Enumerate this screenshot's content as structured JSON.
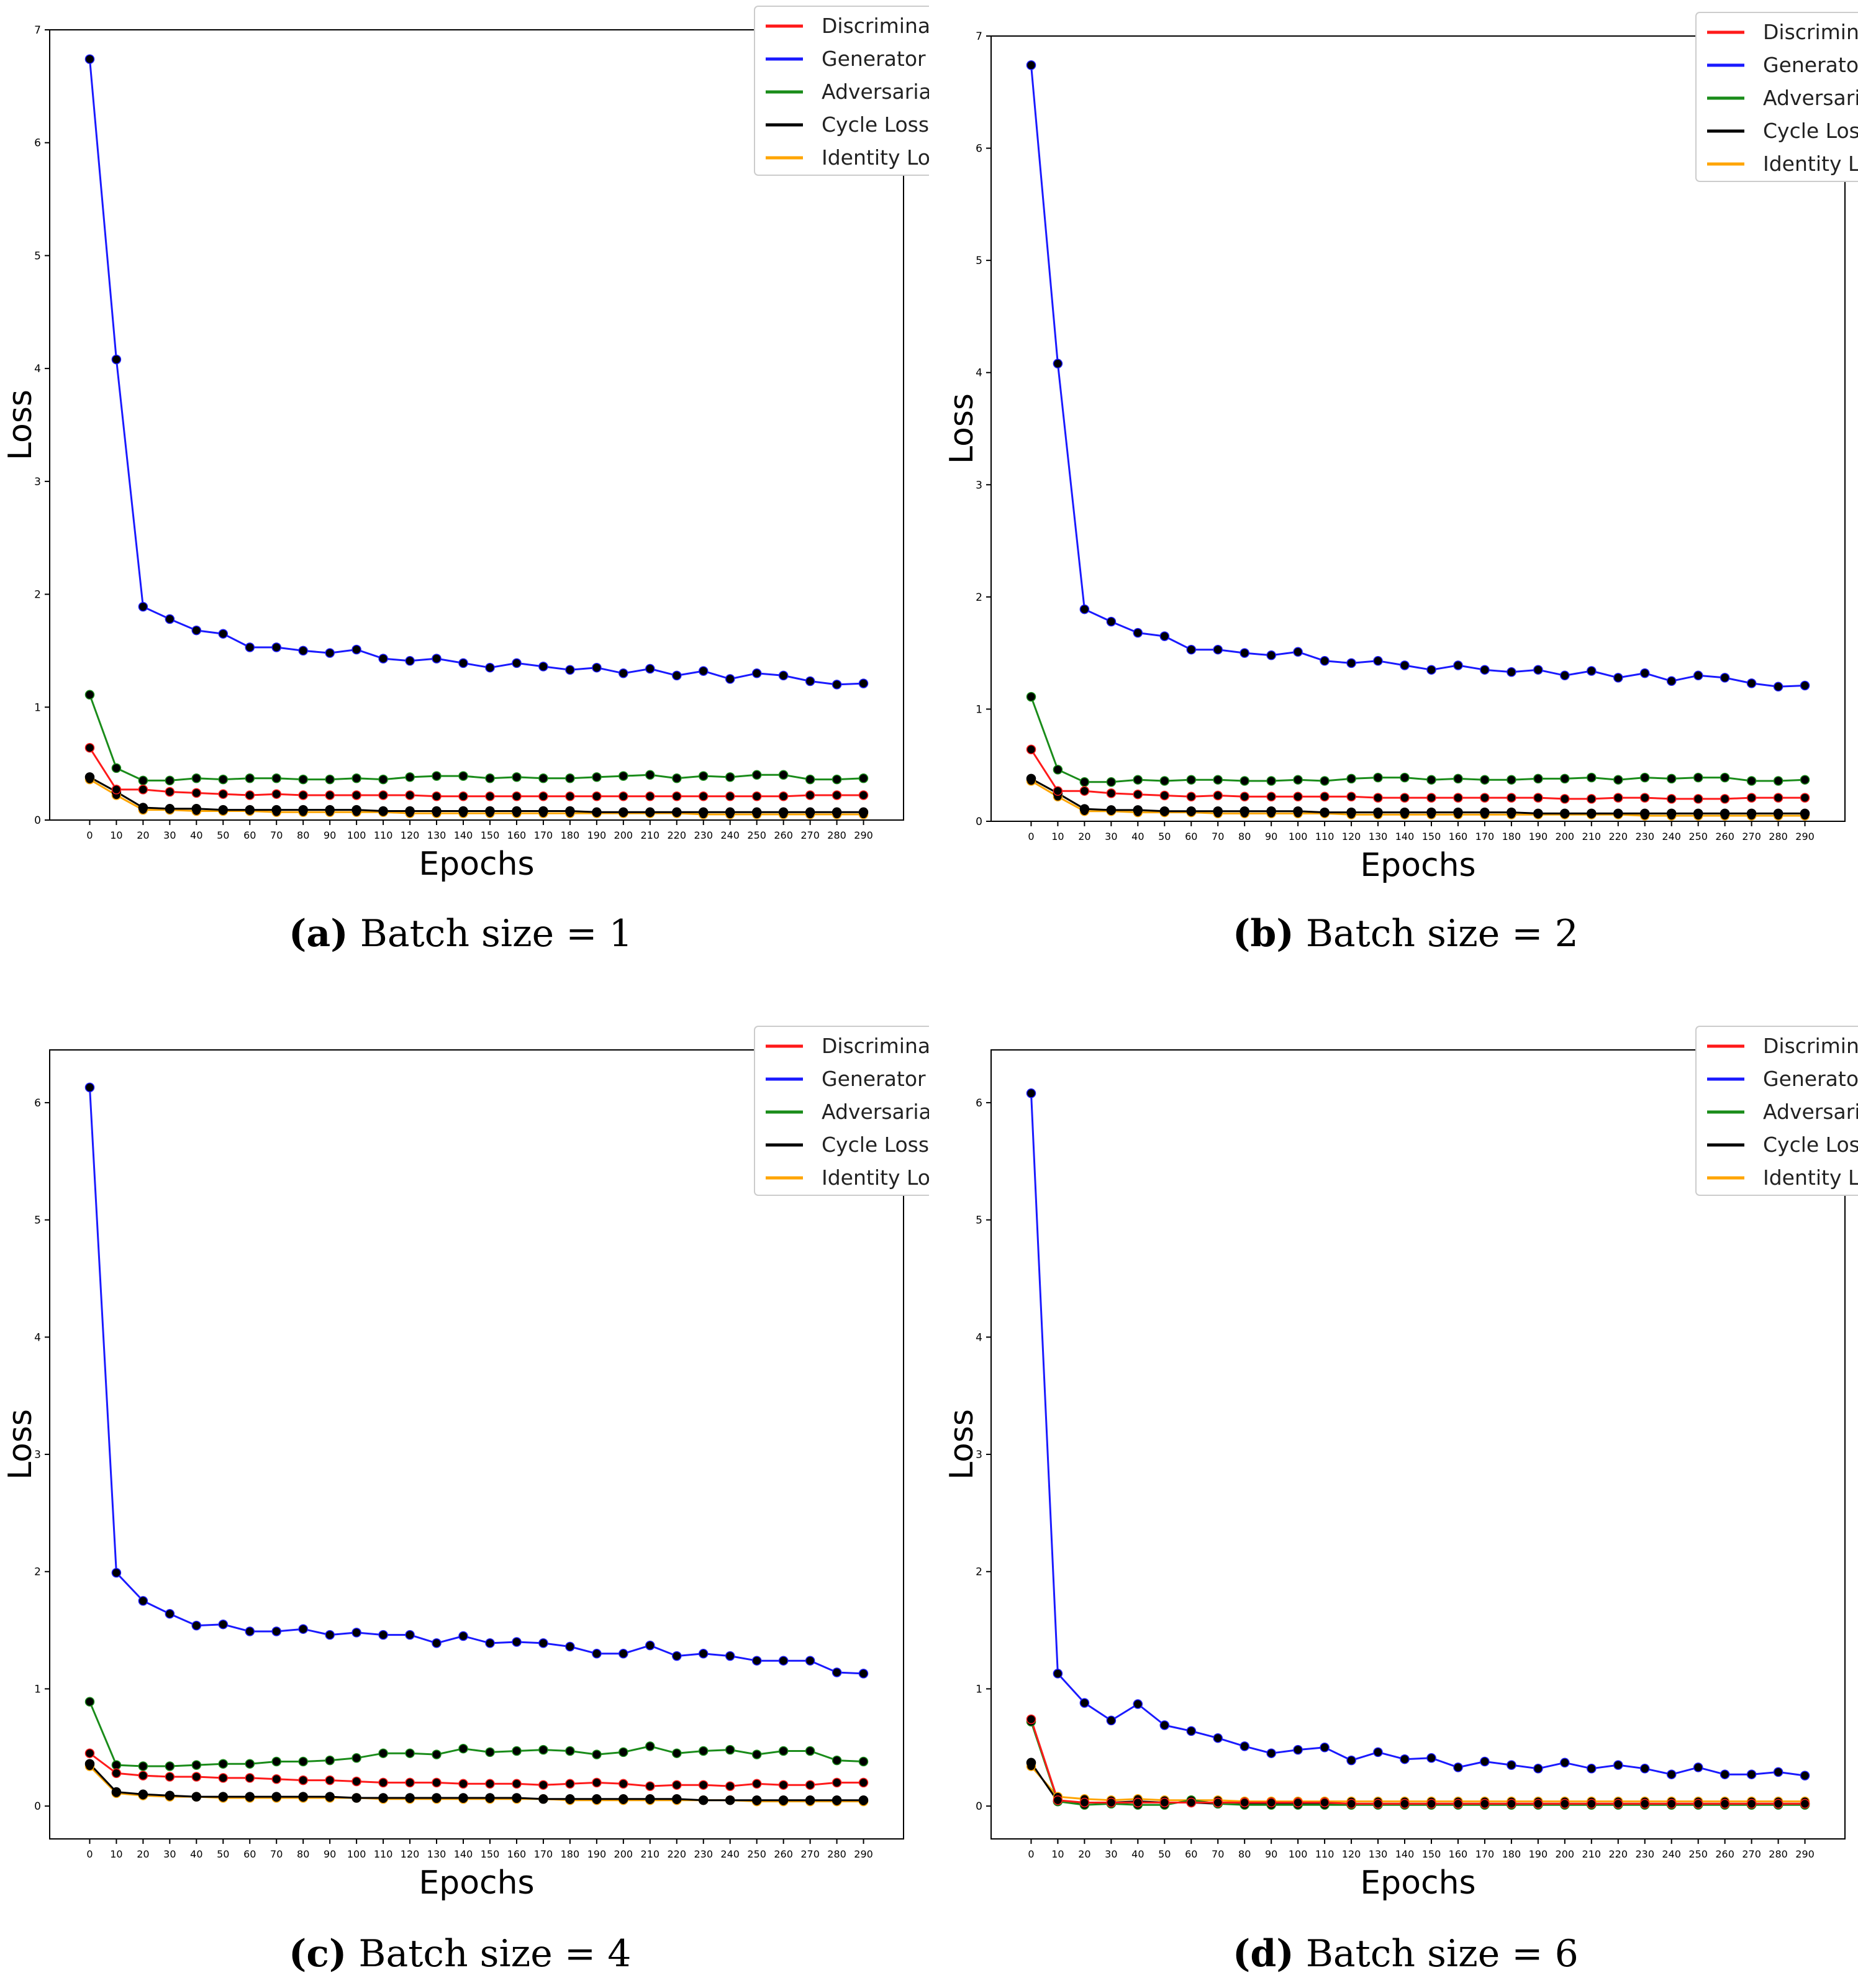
{
  "chart_data": [
    {
      "type": "line",
      "id": "a",
      "xlabel": "Epochs",
      "ylabel": "Loss",
      "ylim": [
        0,
        7
      ],
      "yticks": [
        0,
        1,
        2,
        3,
        4,
        5,
        6,
        7
      ],
      "x": [
        0,
        10,
        20,
        30,
        40,
        50,
        60,
        70,
        80,
        90,
        100,
        110,
        120,
        130,
        140,
        150,
        160,
        170,
        180,
        190,
        200,
        210,
        220,
        230,
        240,
        250,
        260,
        270,
        280,
        290
      ],
      "series": [
        {
          "name": "Discriminator",
          "color": "#ff1a1a",
          "values": [
            0.64,
            0.27,
            0.27,
            0.25,
            0.24,
            0.23,
            0.22,
            0.23,
            0.22,
            0.22,
            0.22,
            0.22,
            0.22,
            0.21,
            0.21,
            0.21,
            0.21,
            0.21,
            0.21,
            0.21,
            0.21,
            0.21,
            0.21,
            0.21,
            0.21,
            0.21,
            0.21,
            0.22,
            0.22,
            0.22
          ]
        },
        {
          "name": "Generator",
          "color": "#1a1aff",
          "values": [
            6.74,
            4.08,
            1.89,
            1.78,
            1.68,
            1.65,
            1.53,
            1.53,
            1.5,
            1.48,
            1.51,
            1.43,
            1.41,
            1.43,
            1.39,
            1.35,
            1.39,
            1.36,
            1.33,
            1.35,
            1.3,
            1.34,
            1.28,
            1.32,
            1.25,
            1.3,
            1.28,
            1.23,
            1.2,
            1.21
          ]
        },
        {
          "name": "Adversarial Loss",
          "color": "#1a8c1a",
          "values": [
            1.11,
            0.46,
            0.35,
            0.35,
            0.37,
            0.36,
            0.37,
            0.37,
            0.36,
            0.36,
            0.37,
            0.36,
            0.38,
            0.39,
            0.39,
            0.37,
            0.38,
            0.37,
            0.37,
            0.38,
            0.39,
            0.4,
            0.37,
            0.39,
            0.38,
            0.4,
            0.4,
            0.36,
            0.36,
            0.37
          ]
        },
        {
          "name": "Cycle Loss",
          "color": "#000000",
          "values": [
            0.38,
            0.25,
            0.11,
            0.1,
            0.1,
            0.09,
            0.09,
            0.09,
            0.09,
            0.09,
            0.09,
            0.08,
            0.08,
            0.08,
            0.08,
            0.08,
            0.08,
            0.08,
            0.08,
            0.07,
            0.07,
            0.07,
            0.07,
            0.07,
            0.07,
            0.07,
            0.07,
            0.07,
            0.07,
            0.07
          ]
        },
        {
          "name": "Identity Loss",
          "color": "#ffa500",
          "values": [
            0.36,
            0.22,
            0.09,
            0.09,
            0.08,
            0.08,
            0.08,
            0.07,
            0.07,
            0.07,
            0.07,
            0.07,
            0.06,
            0.06,
            0.06,
            0.06,
            0.06,
            0.06,
            0.06,
            0.06,
            0.06,
            0.06,
            0.06,
            0.05,
            0.05,
            0.05,
            0.05,
            0.05,
            0.05,
            0.05
          ]
        }
      ],
      "legend": "top-right",
      "caption_letter": "(a)",
      "caption_text": "Batch size = 1"
    },
    {
      "type": "line",
      "id": "b",
      "xlabel": "Epochs",
      "ylabel": "Loss",
      "ylim": [
        0,
        7
      ],
      "yticks": [
        0,
        1,
        2,
        3,
        4,
        5,
        6,
        7
      ],
      "x": [
        0,
        10,
        20,
        30,
        40,
        50,
        60,
        70,
        80,
        90,
        100,
        110,
        120,
        130,
        140,
        150,
        160,
        170,
        180,
        190,
        200,
        210,
        220,
        230,
        240,
        250,
        260,
        270,
        280,
        290
      ],
      "series": [
        {
          "name": "Discriminator",
          "color": "#ff1a1a",
          "values": [
            0.64,
            0.27,
            0.27,
            0.25,
            0.24,
            0.23,
            0.22,
            0.23,
            0.22,
            0.22,
            0.22,
            0.22,
            0.22,
            0.21,
            0.21,
            0.21,
            0.21,
            0.21,
            0.21,
            0.21,
            0.2,
            0.2,
            0.21,
            0.21,
            0.2,
            0.2,
            0.2,
            0.21,
            0.21,
            0.21
          ]
        },
        {
          "name": "Generator",
          "color": "#1a1aff",
          "values": [
            6.74,
            4.08,
            1.89,
            1.78,
            1.68,
            1.65,
            1.53,
            1.53,
            1.5,
            1.48,
            1.51,
            1.43,
            1.41,
            1.43,
            1.39,
            1.35,
            1.39,
            1.35,
            1.33,
            1.35,
            1.3,
            1.34,
            1.28,
            1.32,
            1.25,
            1.3,
            1.28,
            1.23,
            1.2,
            1.21
          ]
        },
        {
          "name": "Adversarial Loss",
          "color": "#1a8c1a",
          "values": [
            1.11,
            0.46,
            0.35,
            0.35,
            0.37,
            0.36,
            0.37,
            0.37,
            0.36,
            0.36,
            0.37,
            0.36,
            0.38,
            0.39,
            0.39,
            0.37,
            0.38,
            0.37,
            0.37,
            0.38,
            0.38,
            0.39,
            0.37,
            0.39,
            0.38,
            0.39,
            0.39,
            0.36,
            0.36,
            0.37
          ]
        },
        {
          "name": "Cycle Loss",
          "color": "#000000",
          "values": [
            0.38,
            0.25,
            0.11,
            0.1,
            0.1,
            0.09,
            0.09,
            0.09,
            0.09,
            0.09,
            0.09,
            0.08,
            0.08,
            0.08,
            0.08,
            0.08,
            0.08,
            0.08,
            0.08,
            0.07,
            0.07,
            0.07,
            0.07,
            0.07,
            0.07,
            0.07,
            0.07,
            0.07,
            0.07,
            0.07
          ]
        },
        {
          "name": "Identity Loss",
          "color": "#ffa500",
          "values": [
            0.36,
            0.22,
            0.09,
            0.09,
            0.08,
            0.08,
            0.08,
            0.07,
            0.07,
            0.07,
            0.07,
            0.07,
            0.06,
            0.06,
            0.06,
            0.06,
            0.06,
            0.06,
            0.06,
            0.06,
            0.06,
            0.06,
            0.06,
            0.05,
            0.05,
            0.05,
            0.05,
            0.05,
            0.05,
            0.05
          ]
        }
      ],
      "legend": "top-right",
      "caption_letter": "(b)",
      "caption_text": "Batch size = 2"
    },
    {
      "type": "line",
      "id": "c",
      "xlabel": "Epochs",
      "ylabel": "Loss",
      "ylim": [
        -0.28,
        6.45
      ],
      "yticks": [
        0,
        1,
        2,
        3,
        4,
        5,
        6
      ],
      "x": [
        0,
        10,
        20,
        30,
        40,
        50,
        60,
        70,
        80,
        90,
        100,
        110,
        120,
        130,
        140,
        150,
        160,
        170,
        180,
        190,
        200,
        210,
        220,
        230,
        240,
        250,
        260,
        270,
        280,
        290
      ],
      "series": [
        {
          "name": "Discriminator",
          "color": "#ff1a1a",
          "values": [
            0.45,
            0.28,
            0.26,
            0.25,
            0.25,
            0.24,
            0.24,
            0.23,
            0.22,
            0.22,
            0.21,
            0.2,
            0.2,
            0.2,
            0.19,
            0.19,
            0.19,
            0.18,
            0.19,
            0.2,
            0.19,
            0.17,
            0.18,
            0.18,
            0.17,
            0.19,
            0.18,
            0.18,
            0.2,
            0.2
          ]
        },
        {
          "name": "Generator",
          "color": "#1a1aff",
          "values": [
            6.13,
            1.99,
            1.75,
            1.64,
            1.54,
            1.55,
            1.49,
            1.49,
            1.51,
            1.46,
            1.48,
            1.46,
            1.46,
            1.39,
            1.45,
            1.39,
            1.4,
            1.39,
            1.36,
            1.3,
            1.3,
            1.37,
            1.28,
            1.3,
            1.28,
            1.24,
            1.24,
            1.24,
            1.14,
            1.13
          ]
        },
        {
          "name": "Adversarial Loss",
          "color": "#1a8c1a",
          "values": [
            0.89,
            0.35,
            0.34,
            0.34,
            0.35,
            0.36,
            0.36,
            0.38,
            0.38,
            0.39,
            0.41,
            0.45,
            0.45,
            0.44,
            0.49,
            0.46,
            0.47,
            0.48,
            0.47,
            0.44,
            0.46,
            0.51,
            0.45,
            0.47,
            0.48,
            0.44,
            0.47,
            0.47,
            0.39,
            0.38
          ]
        },
        {
          "name": "Cycle Loss",
          "color": "#000000",
          "values": [
            0.36,
            0.12,
            0.1,
            0.09,
            0.08,
            0.08,
            0.08,
            0.08,
            0.08,
            0.08,
            0.07,
            0.07,
            0.07,
            0.07,
            0.07,
            0.07,
            0.07,
            0.06,
            0.06,
            0.06,
            0.06,
            0.06,
            0.06,
            0.05,
            0.05,
            0.05,
            0.05,
            0.05,
            0.05,
            0.05
          ]
        },
        {
          "name": "Identity Loss",
          "color": "#ffa500",
          "values": [
            0.34,
            0.11,
            0.09,
            0.08,
            0.08,
            0.07,
            0.07,
            0.07,
            0.07,
            0.07,
            0.07,
            0.06,
            0.06,
            0.06,
            0.06,
            0.06,
            0.06,
            0.06,
            0.05,
            0.05,
            0.05,
            0.05,
            0.05,
            0.05,
            0.05,
            0.04,
            0.04,
            0.04,
            0.04,
            0.04
          ]
        }
      ],
      "legend": "top-right",
      "caption_letter": "(c)",
      "caption_text": "Batch size = 4"
    },
    {
      "type": "line",
      "id": "d",
      "xlabel": "Epochs",
      "ylabel": "Loss",
      "ylim": [
        -0.28,
        6.45
      ],
      "yticks": [
        0,
        1,
        2,
        3,
        4,
        5,
        6
      ],
      "x": [
        0,
        10,
        20,
        30,
        40,
        50,
        60,
        70,
        80,
        90,
        100,
        110,
        120,
        130,
        140,
        150,
        160,
        170,
        180,
        190,
        200,
        210,
        220,
        230,
        240,
        250,
        260,
        270,
        280,
        290
      ],
      "series": [
        {
          "name": "Discriminator",
          "color": "#ff1a1a",
          "values": [
            0.74,
            0.05,
            0.03,
            0.03,
            0.03,
            0.03,
            0.03,
            0.03,
            0.03,
            0.03,
            0.03,
            0.03,
            0.02,
            0.02,
            0.02,
            0.02,
            0.02,
            0.02,
            0.02,
            0.02,
            0.02,
            0.02,
            0.02,
            0.02,
            0.02,
            0.02,
            0.02,
            0.02,
            0.02,
            0.02
          ]
        },
        {
          "name": "Generator",
          "color": "#1a1aff",
          "values": [
            6.08,
            1.13,
            0.88,
            0.73,
            0.87,
            0.69,
            0.64,
            0.58,
            0.51,
            0.45,
            0.48,
            0.5,
            0.39,
            0.46,
            0.4,
            0.41,
            0.33,
            0.38,
            0.35,
            0.32,
            0.37,
            0.32,
            0.35,
            0.32,
            0.27,
            0.33,
            0.27,
            0.27,
            0.29,
            0.26
          ]
        },
        {
          "name": "Adversarial Loss",
          "color": "#1a8c1a",
          "values": [
            0.72,
            0.04,
            0.01,
            0.02,
            0.01,
            0.01,
            0.05,
            0.02,
            0.01,
            0.01,
            0.01,
            0.01,
            0.01,
            0.01,
            0.01,
            0.01,
            0.01,
            0.01,
            0.01,
            0.01,
            0.01,
            0.01,
            0.01,
            0.01,
            0.01,
            0.01,
            0.01,
            0.01,
            0.01,
            0.01
          ]
        },
        {
          "name": "Cycle Loss",
          "color": "#000000",
          "values": [
            0.37,
            0.04,
            0.03,
            0.03,
            0.04,
            0.03,
            0.03,
            0.02,
            0.02,
            0.02,
            0.02,
            0.02,
            0.02,
            0.02,
            0.02,
            0.02,
            0.02,
            0.02,
            0.02,
            0.02,
            0.02,
            0.02,
            0.02,
            0.02,
            0.02,
            0.02,
            0.02,
            0.02,
            0.02,
            0.02
          ]
        },
        {
          "name": "Identity Loss",
          "color": "#ffa500",
          "values": [
            0.34,
            0.08,
            0.06,
            0.05,
            0.06,
            0.05,
            0.05,
            0.05,
            0.04,
            0.04,
            0.04,
            0.04,
            0.04,
            0.04,
            0.04,
            0.04,
            0.04,
            0.04,
            0.04,
            0.04,
            0.04,
            0.04,
            0.04,
            0.04,
            0.04,
            0.04,
            0.04,
            0.04,
            0.04,
            0.04
          ]
        }
      ],
      "legend": "top-right",
      "caption_letter": "(d)",
      "caption_text": "Batch size = 6"
    }
  ]
}
